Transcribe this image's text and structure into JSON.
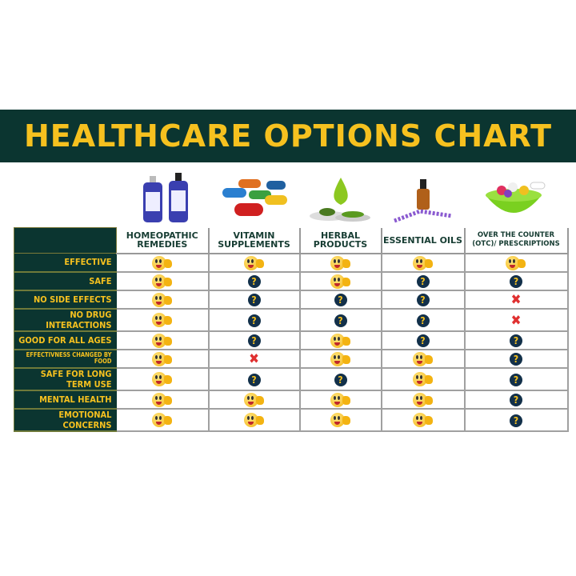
{
  "title": "HEALTHCARE OPTIONS CHART",
  "colors": {
    "banner": "#0b3530",
    "accent": "#f6c11f",
    "question": "#12304a",
    "no": "#e03030"
  },
  "legend_icons": {
    "Y": "thumbs-up-smiley-icon",
    "Q": "question-icon",
    "X": "red-x-icon"
  },
  "columns": [
    {
      "label": "HOMEOPATHIC REMEDIES",
      "image": "homeopathic-bottles-image"
    },
    {
      "label": "VITAMIN SUPPLEMENTS",
      "image": "vitamin-capsules-image"
    },
    {
      "label": "HERBAL PRODUCTS",
      "image": "herbal-leaves-image"
    },
    {
      "label": "ESSENTIAL OILS",
      "image": "essential-oil-bottle-image"
    },
    {
      "label": "OVER THE COUNTER (OTC)/ PRESCRIPTIONS",
      "image": "pills-bowl-image"
    }
  ],
  "rows": [
    {
      "label": "EFFECTIVE",
      "values": [
        "Y",
        "Y",
        "Y",
        "Y",
        "Y"
      ]
    },
    {
      "label": "SAFE",
      "values": [
        "Y",
        "Q",
        "Y",
        "Q",
        "Q"
      ]
    },
    {
      "label": "NO SIDE EFFECTS",
      "values": [
        "Y",
        "Q",
        "Q",
        "Q",
        "X"
      ]
    },
    {
      "label": "NO DRUG INTERACTIONS",
      "values": [
        "Y",
        "Q",
        "Q",
        "Q",
        "X"
      ]
    },
    {
      "label": "GOOD FOR ALL AGES",
      "values": [
        "Y",
        "Q",
        "Y",
        "Q",
        "Q"
      ]
    },
    {
      "label": "EFFECTIVNESS CHANGED BY FOOD",
      "values": [
        "Y",
        "X",
        "Y",
        "Y",
        "Q"
      ]
    },
    {
      "label": "SAFE FOR LONG TERM USE",
      "values": [
        "Y",
        "Q",
        "Q",
        "Y",
        "Q"
      ]
    },
    {
      "label": "MENTAL HEALTH",
      "values": [
        "Y",
        "Y",
        "Y",
        "Y",
        "Q"
      ]
    },
    {
      "label": "EMOTIONAL CONCERNS",
      "values": [
        "Y",
        "Y",
        "Y",
        "Y",
        "Q"
      ]
    }
  ]
}
